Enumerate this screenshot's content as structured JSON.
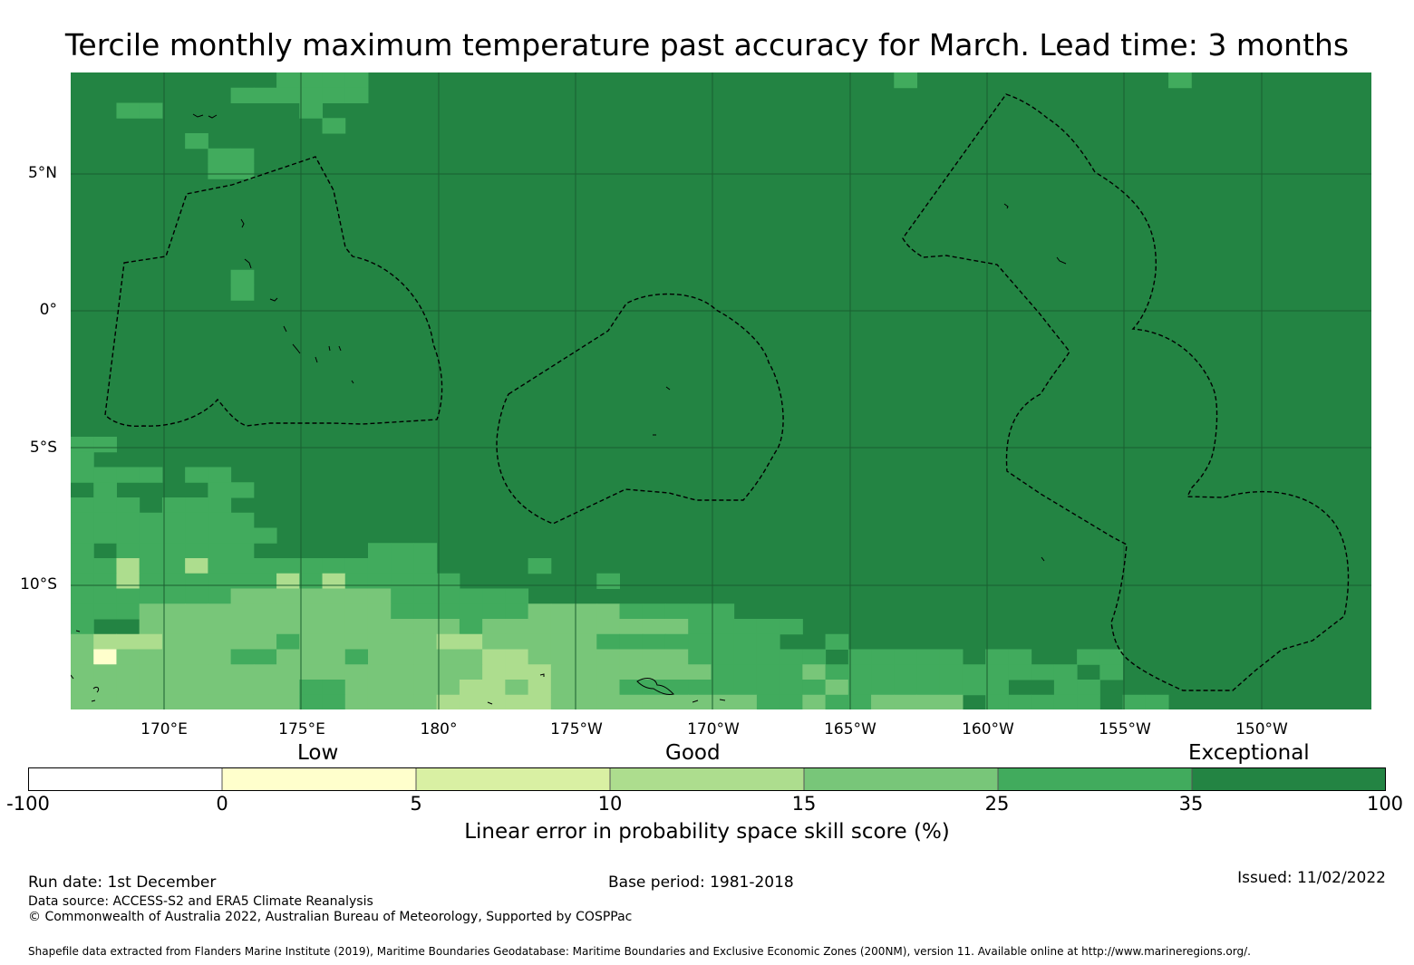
{
  "title": "Tercile monthly maximum temperature past accuracy for March. Lead time: 3 months",
  "map": {
    "latitude_labels": [
      "5°N",
      "0°",
      "5°S",
      "10°S"
    ],
    "longitude_labels": [
      "170°E",
      "175°E",
      "180°",
      "175°W",
      "170°W",
      "165°W",
      "160°W",
      "155°W",
      "150°W"
    ],
    "colors": {
      "exceptional": "#238443",
      "very_good": "#41ab5d",
      "good_high": "#78c679",
      "good": "#addd8e",
      "fair": "#d9f0a3",
      "low": "#ffffcc",
      "none": "#ffffff",
      "grid": "#1a5e30",
      "boundary": "#000000"
    }
  },
  "colorbar": {
    "categories": [
      "Low",
      "Good",
      "Exceptional"
    ],
    "ticks": [
      "-100",
      "0",
      "5",
      "10",
      "15",
      "25",
      "35",
      "100"
    ],
    "bins": [
      {
        "from": -100,
        "to": 0,
        "color": "#ffffff"
      },
      {
        "from": 0,
        "to": 5,
        "color": "#ffffcc"
      },
      {
        "from": 5,
        "to": 10,
        "color": "#d9f0a3"
      },
      {
        "from": 10,
        "to": 15,
        "color": "#addd8e"
      },
      {
        "from": 15,
        "to": 25,
        "color": "#78c679"
      },
      {
        "from": 25,
        "to": 35,
        "color": "#41ab5d"
      },
      {
        "from": 35,
        "to": 100,
        "color": "#238443"
      }
    ],
    "title": "Linear error in probability space skill score (%)"
  },
  "footer": {
    "run_date": "Run date: 1st December",
    "base_period": "Base period: 1981-2018",
    "issued": "Issued: 11/02/2022",
    "data_source": "Data source: ACCESS-S2 and ERA5 Climate Reanalysis",
    "copyright": "© Commonwealth of Australia 2022, Australian Bureau of Meteorology, Supported by COSPPac",
    "shapefile_credit": "Shapefile data extracted from Flanders Marine Institute (2019), Maritime Boundaries Geodatabase: Maritime Boundaries and Exclusive Economic Zones (200NM), version 11. Available online at http://www.marineregions.org/."
  }
}
